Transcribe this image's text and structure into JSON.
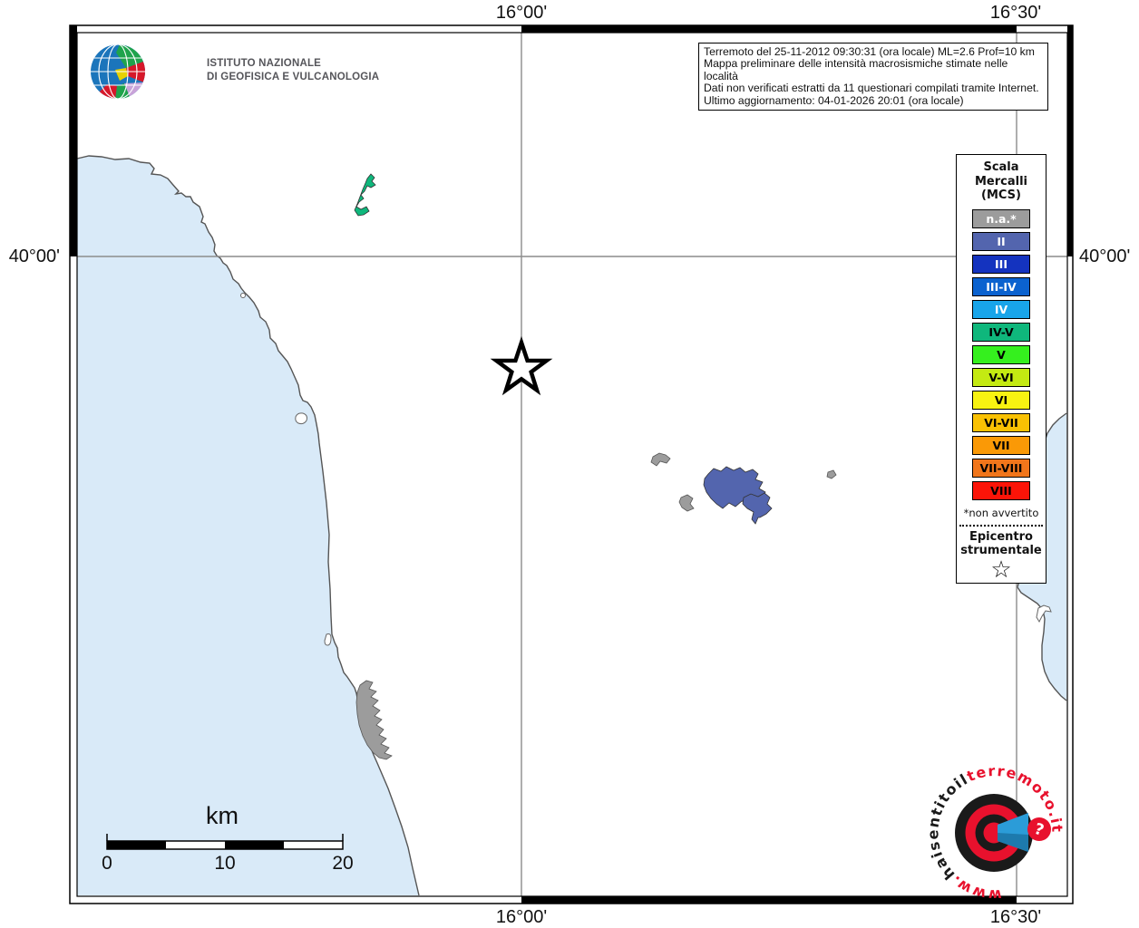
{
  "ingv": {
    "name_line1": "ISTITUTO NAZIONALE",
    "name_line2": "DI GEOFISICA E VULCANOLOGIA"
  },
  "info_box": {
    "line1": "Terremoto del 25-11-2012 09:30:31 (ora locale) ML=2.6 Prof=10 km",
    "line2": "Mappa preliminare delle intensità macrosismiche stimate nelle località",
    "line3": "Dati non verificati estratti da 11 questionari compilati tramite Internet.",
    "line4": "Ultimo aggiornamento: 04-01-2026 20:01 (ora locale)"
  },
  "graticule": {
    "lon_left": "16°00'",
    "lon_right": "16°30'",
    "lat": "40°00'"
  },
  "legend": {
    "title_lines": [
      "Scala",
      "Mercalli",
      "(MCS)"
    ],
    "items": [
      {
        "label": "n.a.*",
        "color": "#9c9c9c",
        "text_color": "#ffffff"
      },
      {
        "label": "II",
        "color": "#5365ae",
        "text_color": "#ffffff"
      },
      {
        "label": "III",
        "color": "#1433bf",
        "text_color": "#ffffff"
      },
      {
        "label": "III-IV",
        "color": "#0b62cf",
        "text_color": "#ffffff"
      },
      {
        "label": "IV",
        "color": "#18a5ea",
        "text_color": "#ffffff"
      },
      {
        "label": "IV-V",
        "color": "#0fb77c",
        "text_color": "#000000"
      },
      {
        "label": "V",
        "color": "#35f01e",
        "text_color": "#000000"
      },
      {
        "label": "V-VI",
        "color": "#c4ea12",
        "text_color": "#000000"
      },
      {
        "label": "VI",
        "color": "#f8f311",
        "text_color": "#000000"
      },
      {
        "label": "VI-VII",
        "color": "#f9c103",
        "text_color": "#000000"
      },
      {
        "label": "VII",
        "color": "#fa9906",
        "text_color": "#000000"
      },
      {
        "label": "VII-VIII",
        "color": "#f1761b",
        "text_color": "#000000"
      },
      {
        "label": "VIII",
        "color": "#fb1408",
        "text_color": "#000000"
      }
    ],
    "footnote": "*non avvertito",
    "epicenter_line1": "Epicentro",
    "epicenter_line2": "strumentale",
    "star_char": "☆"
  },
  "scale_bar": {
    "unit": "km",
    "ticks": [
      "0",
      "10",
      "20"
    ]
  },
  "map_colors": {
    "sea": "#d9eaf8",
    "coastline": "#555555",
    "grid": "#8c8c8c"
  },
  "site_logo": {
    "prefix": "www.",
    "middle": "haisentitoil",
    "domain": "terremoto.it",
    "question_mark": "?",
    "red": "#e8112d",
    "black": "#1a1a1a",
    "blue": "#2b9cd8"
  }
}
